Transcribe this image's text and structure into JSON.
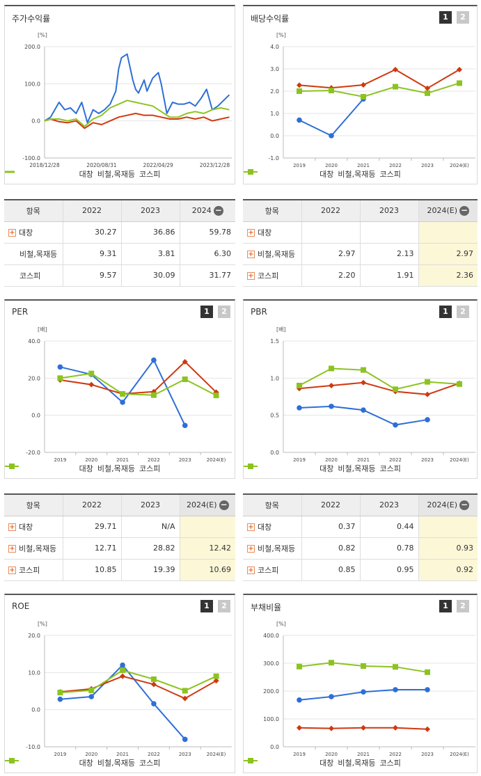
{
  "colors": {
    "company": "#2e6fd6",
    "industry": "#d0380f",
    "kospi": "#8cc320"
  },
  "legend": {
    "company": "대창",
    "industry": "비철,목재등",
    "kospi": "코스피"
  },
  "pagers": {
    "p1": "1",
    "p2": "2"
  },
  "panels": {
    "stock": {
      "title": "주가수익률",
      "unit": "[%]"
    },
    "dividend": {
      "title": "배당수익률",
      "unit": "[%]"
    },
    "per": {
      "title": "PER",
      "unit": "[배]"
    },
    "pbr": {
      "title": "PBR",
      "unit": "[배]"
    },
    "roe": {
      "title": "ROE",
      "unit": "[%]"
    },
    "debt": {
      "title": "부채비율",
      "unit": "[%]"
    }
  },
  "tables": {
    "stock": {
      "headers": [
        "항목",
        "2022",
        "2023",
        "2024"
      ],
      "rows": [
        [
          "대창",
          "30.27",
          "36.86",
          "59.78"
        ],
        [
          "비철,목재등",
          "9.31",
          "3.81",
          "6.30"
        ],
        [
          "코스피",
          "9.57",
          "30.09",
          "31.77"
        ]
      ]
    },
    "dividend": {
      "headers": [
        "항목",
        "2022",
        "2023",
        "2024(E)"
      ],
      "rows": [
        [
          "대창",
          "",
          "",
          ""
        ],
        [
          "비철,목재등",
          "2.97",
          "2.13",
          "2.97"
        ],
        [
          "코스피",
          "2.20",
          "1.91",
          "2.36"
        ]
      ]
    },
    "per": {
      "headers": [
        "항목",
        "2022",
        "2023",
        "2024(E)"
      ],
      "rows": [
        [
          "대창",
          "29.71",
          "N/A",
          ""
        ],
        [
          "비철,목재등",
          "12.71",
          "28.82",
          "12.42"
        ],
        [
          "코스피",
          "10.85",
          "19.39",
          "10.69"
        ]
      ]
    },
    "pbr": {
      "headers": [
        "항목",
        "2022",
        "2023",
        "2024(E)"
      ],
      "rows": [
        [
          "대창",
          "0.37",
          "0.44",
          ""
        ],
        [
          "비철,목재등",
          "0.82",
          "0.78",
          "0.93"
        ],
        [
          "코스피",
          "0.85",
          "0.95",
          "0.92"
        ]
      ]
    }
  },
  "chart_data": [
    {
      "type": "line",
      "id": "stock",
      "title": "주가수익률",
      "ylabel": "[%]",
      "ylim": [
        -100,
        200
      ],
      "yticks": [
        "200.0",
        "100.0",
        "0.0",
        "-100.0"
      ],
      "xticks": [
        "2018/12/28",
        "2020/08/31",
        "2022/04/29",
        "2023/12/28"
      ],
      "xrange": [
        "2018-12-28",
        "2024-06-28"
      ],
      "series": [
        {
          "name": "대창",
          "x": [
            "2018-12-28",
            "2019-03",
            "2019-06",
            "2019-08",
            "2019-10",
            "2019-12",
            "2020-02",
            "2020-04",
            "2020-06",
            "2020-08",
            "2020-10",
            "2020-12",
            "2021-02",
            "2021-03",
            "2021-04",
            "2021-05",
            "2021-06",
            "2021-08",
            "2021-09",
            "2021-10",
            "2021-12",
            "2022-01",
            "2022-03",
            "2022-05",
            "2022-06",
            "2022-08",
            "2022-10",
            "2022-12",
            "2023-02",
            "2023-04",
            "2023-06",
            "2023-08",
            "2023-10",
            "2023-12",
            "2024-02",
            "2024-04",
            "2024-06"
          ],
          "y": [
            0,
            10,
            50,
            30,
            35,
            20,
            50,
            -5,
            30,
            20,
            30,
            45,
            80,
            140,
            170,
            175,
            180,
            110,
            85,
            75,
            110,
            80,
            115,
            130,
            100,
            20,
            50,
            45,
            45,
            50,
            40,
            60,
            85,
            30,
            40,
            55,
            70
          ]
        },
        {
          "name": "비철,목재등",
          "x": [
            "2018-12-28",
            "2019-03",
            "2019-06",
            "2019-09",
            "2019-12",
            "2020-03",
            "2020-06",
            "2020-09",
            "2020-12",
            "2021-03",
            "2021-06",
            "2021-09",
            "2021-12",
            "2022-03",
            "2022-06",
            "2022-09",
            "2022-12",
            "2023-03",
            "2023-06",
            "2023-09",
            "2023-12",
            "2024-03",
            "2024-06"
          ],
          "y": [
            0,
            5,
            -2,
            -5,
            0,
            -20,
            -5,
            -10,
            0,
            10,
            15,
            20,
            15,
            15,
            10,
            5,
            5,
            10,
            5,
            10,
            0,
            5,
            10
          ]
        },
        {
          "name": "코스피",
          "x": [
            "2018-12-28",
            "2019-03",
            "2019-06",
            "2019-09",
            "2019-12",
            "2020-03",
            "2020-06",
            "2020-09",
            "2020-12",
            "2021-03",
            "2021-06",
            "2021-09",
            "2021-12",
            "2022-03",
            "2022-06",
            "2022-09",
            "2022-12",
            "2023-03",
            "2023-06",
            "2023-09",
            "2023-12",
            "2024-03",
            "2024-06"
          ],
          "y": [
            0,
            5,
            5,
            0,
            5,
            -15,
            5,
            15,
            35,
            45,
            55,
            50,
            45,
            40,
            25,
            10,
            10,
            20,
            25,
            20,
            30,
            35,
            30
          ]
        }
      ]
    },
    {
      "type": "line",
      "id": "dividend",
      "title": "배당수익률",
      "ylabel": "[%]",
      "ylim": [
        -1,
        4
      ],
      "yticks": [
        "4.0",
        "3.0",
        "2.0",
        "1.0",
        "0.0",
        "-1.0"
      ],
      "categories": [
        "2019",
        "2020",
        "2021",
        "2022",
        "2023",
        "2024(E)"
      ],
      "series": [
        {
          "name": "대창",
          "values": [
            0.7,
            0.0,
            1.65,
            null,
            null,
            null
          ]
        },
        {
          "name": "비철,목재등",
          "values": [
            2.27,
            2.15,
            2.28,
            2.97,
            2.13,
            2.97
          ]
        },
        {
          "name": "코스피",
          "values": [
            2.0,
            2.03,
            1.75,
            2.2,
            1.91,
            2.36
          ]
        }
      ]
    },
    {
      "type": "line",
      "id": "per",
      "title": "PER",
      "ylabel": "[배]",
      "ylim": [
        -20,
        40
      ],
      "yticks": [
        "40.0",
        "20.0",
        "0.0",
        "-20.0"
      ],
      "categories": [
        "2019",
        "2020",
        "2021",
        "2022",
        "2023",
        "2024(E)"
      ],
      "series": [
        {
          "name": "대창",
          "values": [
            26,
            22,
            7,
            29.71,
            -5.5,
            null
          ]
        },
        {
          "name": "비철,목재등",
          "values": [
            19,
            16.5,
            11.5,
            12.71,
            28.82,
            12.42
          ]
        },
        {
          "name": "코스피",
          "values": [
            20,
            22.5,
            11.5,
            10.85,
            19.39,
            10.69
          ]
        }
      ]
    },
    {
      "type": "line",
      "id": "pbr",
      "title": "PBR",
      "ylabel": "[배]",
      "ylim": [
        0,
        1.5
      ],
      "yticks": [
        "1.5",
        "1.0",
        "0.5",
        "0.0"
      ],
      "categories": [
        "2019",
        "2020",
        "2021",
        "2022",
        "2023",
        "2024(E)"
      ],
      "series": [
        {
          "name": "대창",
          "values": [
            0.6,
            0.62,
            0.57,
            0.37,
            0.44,
            null
          ]
        },
        {
          "name": "비철,목재등",
          "values": [
            0.86,
            0.9,
            0.94,
            0.82,
            0.78,
            0.93
          ]
        },
        {
          "name": "코스피",
          "values": [
            0.9,
            1.13,
            1.11,
            0.85,
            0.95,
            0.92
          ]
        }
      ]
    },
    {
      "type": "line",
      "id": "roe",
      "title": "ROE",
      "ylabel": "[%]",
      "ylim": [
        -10,
        20
      ],
      "yticks": [
        "20.0",
        "10.0",
        "0.0",
        "-10.0"
      ],
      "categories": [
        "2019",
        "2020",
        "2021",
        "2022",
        "2023",
        "2024(E)"
      ],
      "series": [
        {
          "name": "대창",
          "values": [
            2.8,
            3.5,
            12.0,
            1.6,
            -8.0,
            null
          ]
        },
        {
          "name": "비철,목재등",
          "values": [
            4.8,
            5.6,
            9.0,
            6.8,
            3.0,
            7.8
          ]
        },
        {
          "name": "코스피",
          "values": [
            4.6,
            5.2,
            10.6,
            8.2,
            5.1,
            9.0
          ]
        }
      ]
    },
    {
      "type": "line",
      "id": "debt",
      "title": "부채비율",
      "ylabel": "[%]",
      "ylim": [
        0,
        400
      ],
      "yticks": [
        "400.0",
        "300.0",
        "200.0",
        "100.0",
        "0.0"
      ],
      "categories": [
        "2019",
        "2020",
        "2021",
        "2022",
        "2023",
        "2024(E)"
      ],
      "series": [
        {
          "name": "대창",
          "values": [
            168,
            180,
            197,
            205,
            205,
            null
          ]
        },
        {
          "name": "비철,목재등",
          "values": [
            68,
            66,
            68,
            68,
            63,
            null
          ]
        },
        {
          "name": "코스피",
          "values": [
            288,
            302,
            290,
            287,
            268,
            null
          ]
        }
      ]
    }
  ]
}
